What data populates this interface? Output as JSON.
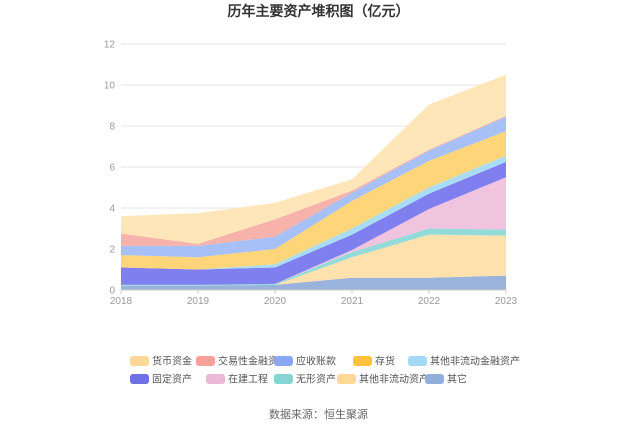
{
  "chart_data": {
    "type": "area",
    "stacked": true,
    "title": "历年主要资产堆积图（亿元）",
    "xlabel": "",
    "ylabel": "",
    "x": [
      "2018",
      "2019",
      "2020",
      "2021",
      "2022",
      "2023"
    ],
    "ylim": [
      0,
      12
    ],
    "yticks": [
      "0",
      "2",
      "4",
      "6",
      "8",
      "10",
      "12"
    ],
    "grid": true,
    "legend_position": "bottom",
    "series": [
      {
        "name": "其它",
        "color": "#9ab3dc",
        "values": [
          0.2,
          0.2,
          0.25,
          0.6,
          0.6,
          0.7
        ]
      },
      {
        "name": "其他非流动资产",
        "color": "#ffe1ad",
        "values": [
          0.0,
          0.0,
          0.0,
          1.0,
          2.1,
          1.95
        ]
      },
      {
        "name": "无形资产",
        "color": "#93dbd8",
        "values": [
          0.05,
          0.05,
          0.05,
          0.25,
          0.3,
          0.3
        ]
      },
      {
        "name": "在建工程",
        "color": "#f0c4df",
        "values": [
          0.0,
          0.0,
          0.0,
          0.1,
          0.95,
          2.55
        ]
      },
      {
        "name": "固定资产",
        "color": "#7f7ff0",
        "values": [
          0.85,
          0.75,
          0.8,
          0.75,
          0.75,
          0.75
        ]
      },
      {
        "name": "其他非流动金融资产",
        "color": "#a9dcf5",
        "values": [
          0.0,
          0.0,
          0.15,
          0.3,
          0.3,
          0.3
        ]
      },
      {
        "name": "存货",
        "color": "#ffd57a",
        "values": [
          0.6,
          0.6,
          0.75,
          1.35,
          1.3,
          1.2
        ]
      },
      {
        "name": "应收账款",
        "color": "#a7c0f7",
        "values": [
          0.45,
          0.55,
          0.6,
          0.4,
          0.5,
          0.7
        ]
      },
      {
        "name": "交易性金融资产",
        "color": "#f7b2ac",
        "values": [
          0.6,
          0.1,
          0.85,
          0.1,
          0.05,
          0.05
        ]
      },
      {
        "name": "货币资金",
        "color": "#ffe6b8",
        "values": [
          0.85,
          1.5,
          0.8,
          0.55,
          2.2,
          2.0
        ]
      }
    ],
    "legend": [
      {
        "name": "货币资金",
        "color": "#ffd898"
      },
      {
        "name": "交易性金融资产",
        "color": "#f7a09a"
      },
      {
        "name": "应收账款",
        "color": "#8aa8f2"
      },
      {
        "name": "存货",
        "color": "#ffc23d"
      },
      {
        "name": "其他非流动金融资产",
        "color": "#a3d9f4"
      },
      {
        "name": "固定资产",
        "color": "#6f6fe8"
      },
      {
        "name": "在建工程",
        "color": "#ebb8d8"
      },
      {
        "name": "无形资产",
        "color": "#86d5d2"
      },
      {
        "name": "其他非流动资产",
        "color": "#ffd898"
      },
      {
        "name": "其它",
        "color": "#92aedb"
      }
    ],
    "source": "数据来源：恒生聚源"
  }
}
